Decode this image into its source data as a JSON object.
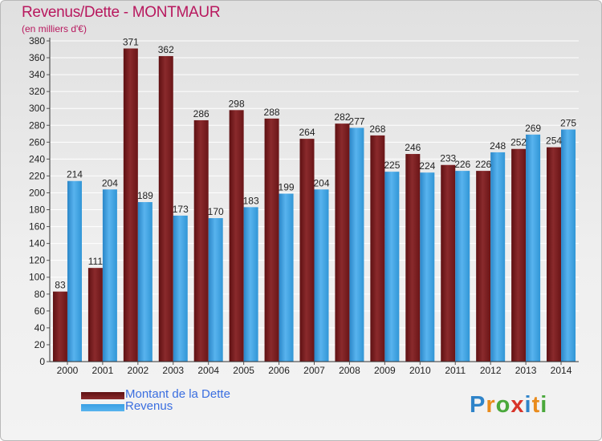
{
  "title": "Revenus/Dette - MONTMAUR",
  "subtitle": "(en milliers d'€)",
  "brand": {
    "text": "Proxiti",
    "letters": [
      {
        "ch": "P",
        "color": "#2f84c9"
      },
      {
        "ch": "r",
        "color": "#e98b1c"
      },
      {
        "ch": "o",
        "color": "#4aa83b"
      },
      {
        "ch": "x",
        "color": "#d8342a"
      },
      {
        "ch": "i",
        "color": "#2f84c9"
      },
      {
        "ch": "t",
        "color": "#e98b1c"
      },
      {
        "ch": "i",
        "color": "#4aa83b"
      }
    ]
  },
  "chart_data": {
    "type": "bar",
    "categories": [
      "2000",
      "2001",
      "2002",
      "2003",
      "2004",
      "2005",
      "2006",
      "2007",
      "2008",
      "2009",
      "2010",
      "2011",
      "2012",
      "2013",
      "2014"
    ],
    "series": [
      {
        "name": "Montant de la Dette",
        "color": "#7b1d1f",
        "values": [
          83,
          111,
          371,
          362,
          286,
          298,
          288,
          264,
          282,
          268,
          246,
          233,
          226,
          252,
          254
        ]
      },
      {
        "name": "Revenus",
        "color": "#3aa0e4",
        "values": [
          214,
          204,
          189,
          173,
          170,
          183,
          199,
          204,
          277,
          225,
          224,
          226,
          248,
          269,
          275
        ]
      }
    ],
    "ylim": [
      0,
      380
    ],
    "ytick_step": 20,
    "grid": true,
    "legend": "bottom-left"
  }
}
